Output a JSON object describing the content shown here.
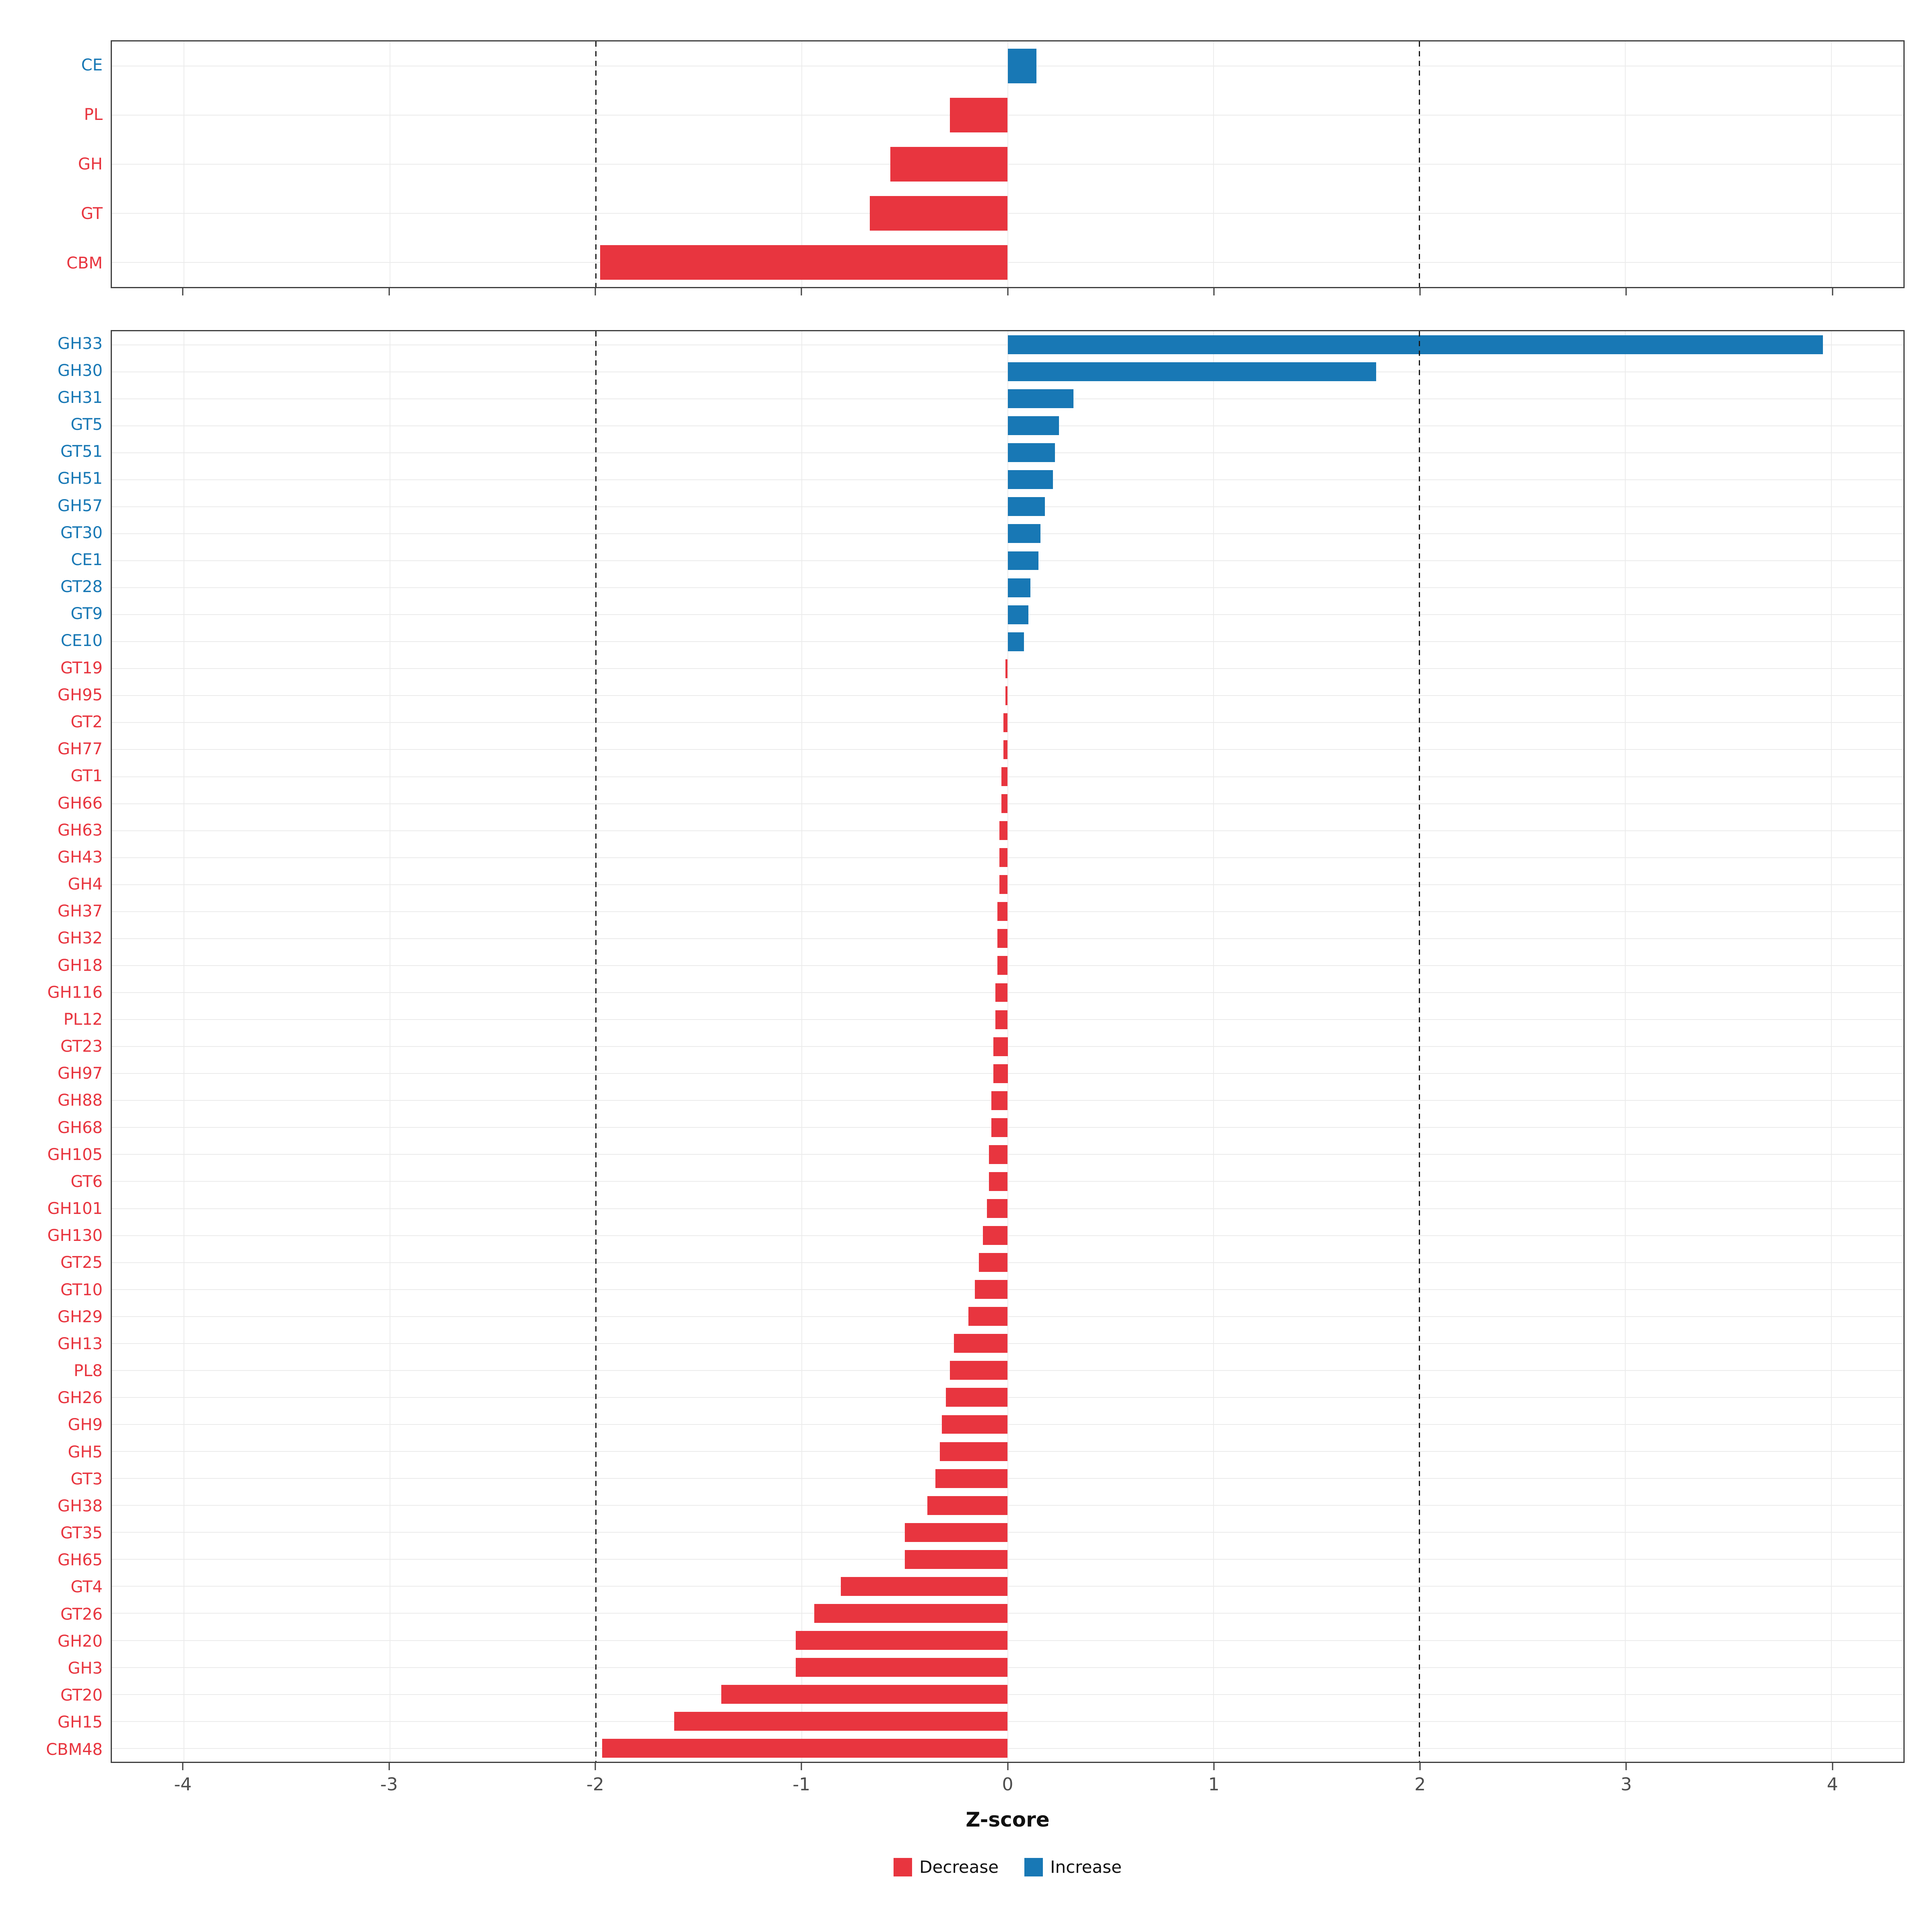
{
  "axis": {
    "label": "Z-score"
  },
  "style": {
    "decrease": "#e8353f",
    "increase": "#1878b5",
    "vgrid": "#ececec",
    "hgrid": "#ebebeb"
  },
  "legend": [
    {
      "label": "Decrease",
      "color": "#e8353f"
    },
    {
      "label": "Increase",
      "color": "#1878b5"
    }
  ],
  "chart_data": [
    {
      "type": "bar",
      "orientation": "horizontal",
      "title": "",
      "xlabel": "Z-score",
      "ylabel": "",
      "xlim": [
        -4.35,
        4.35
      ],
      "xticks": [
        -4,
        -3,
        -2,
        -1,
        0,
        1,
        2,
        3,
        4
      ],
      "vlines": [
        -2,
        2
      ],
      "grid": true,
      "categories": [
        "CE",
        "PL",
        "GH",
        "GT",
        "CBM"
      ],
      "values": [
        0.14,
        -0.28,
        -0.57,
        -0.67,
        -1.98
      ]
    },
    {
      "type": "bar",
      "orientation": "horizontal",
      "title": "",
      "xlabel": "Z-score",
      "ylabel": "",
      "xlim": [
        -4.35,
        4.35
      ],
      "xticks": [
        -4,
        -3,
        -2,
        -1,
        0,
        1,
        2,
        3,
        4
      ],
      "vlines": [
        -2,
        2
      ],
      "grid": true,
      "categories": [
        "GH33",
        "GH30",
        "GH31",
        "GT5",
        "GT51",
        "GH51",
        "GH57",
        "GT30",
        "CE1",
        "GT28",
        "GT9",
        "CE10",
        "GT19",
        "GH95",
        "GT2",
        "GH77",
        "GT1",
        "GH66",
        "GH63",
        "GH43",
        "GH4",
        "GH37",
        "GH32",
        "GH18",
        "GH116",
        "PL12",
        "GT23",
        "GH97",
        "GH88",
        "GH68",
        "GH105",
        "GT6",
        "GH101",
        "GH130",
        "GT25",
        "GT10",
        "GH29",
        "GH13",
        "PL8",
        "GH26",
        "GH9",
        "GH5",
        "GT3",
        "GH38",
        "GT35",
        "GH65",
        "GT4",
        "GT26",
        "GH20",
        "GH3",
        "GT20",
        "GH15",
        "CBM48"
      ],
      "values": [
        3.96,
        1.79,
        0.32,
        0.25,
        0.23,
        0.22,
        0.18,
        0.16,
        0.15,
        0.11,
        0.1,
        0.08,
        -0.01,
        -0.01,
        -0.02,
        -0.02,
        -0.03,
        -0.03,
        -0.04,
        -0.04,
        -0.04,
        -0.05,
        -0.05,
        -0.05,
        -0.06,
        -0.06,
        -0.07,
        -0.07,
        -0.08,
        -0.08,
        -0.09,
        -0.09,
        -0.1,
        -0.12,
        -0.14,
        -0.16,
        -0.19,
        -0.26,
        -0.28,
        -0.3,
        -0.32,
        -0.33,
        -0.35,
        -0.39,
        -0.5,
        -0.5,
        -0.81,
        -0.94,
        -1.03,
        -1.03,
        -1.39,
        -1.62,
        -1.97
      ]
    }
  ]
}
